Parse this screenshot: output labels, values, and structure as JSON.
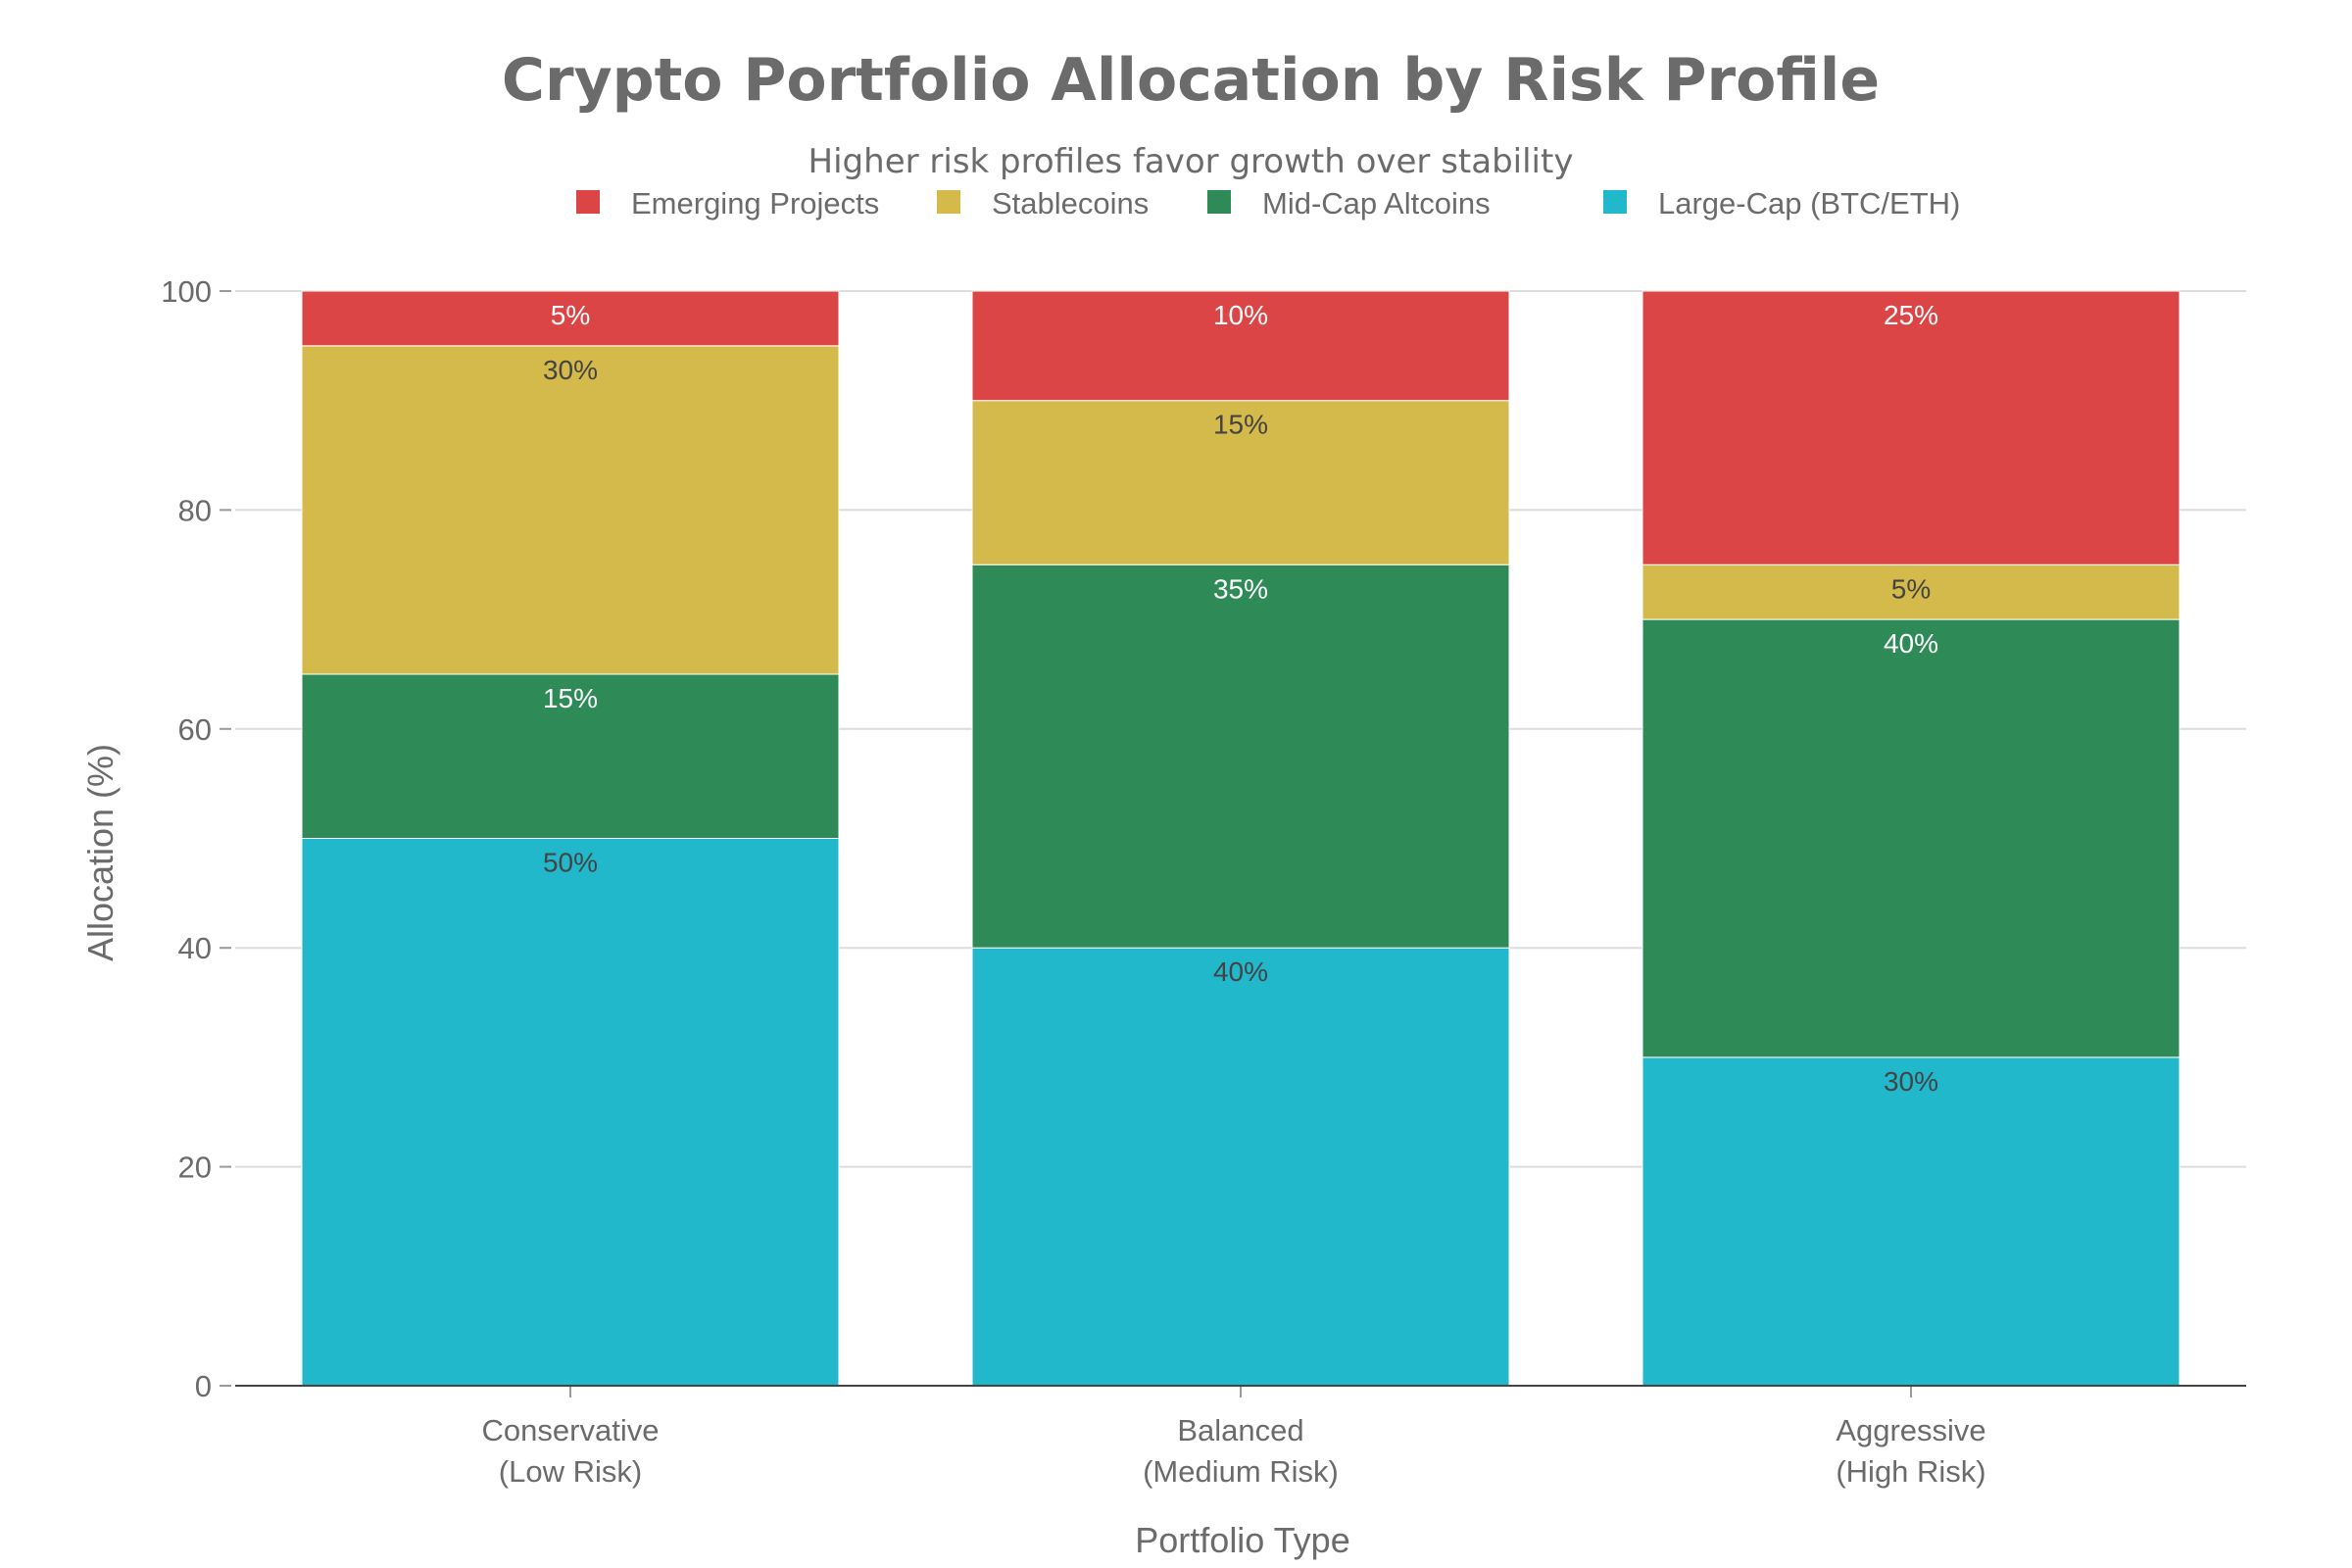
{
  "chart_data": {
    "type": "bar",
    "stacked": true,
    "title": "Crypto Portfolio Allocation by Risk Profile",
    "subtitle": "Higher risk profiles favor growth over stability",
    "xlabel": "Portfolio Type",
    "ylabel": "Allocation (%)",
    "ylim": [
      0,
      100
    ],
    "yticks": [
      0,
      20,
      40,
      60,
      80,
      100
    ],
    "grid": true,
    "legend_position": "top-center",
    "categories": [
      [
        "Conservative",
        "(Low Risk)"
      ],
      [
        "Balanced",
        "(Medium Risk)"
      ],
      [
        "Aggressive",
        "(High Risk)"
      ]
    ],
    "series": [
      {
        "name": "Large-Cap (BTC/ETH)",
        "color": "#21b8cc",
        "label_color": "#444444",
        "values": [
          50,
          40,
          30
        ],
        "labels": [
          "50%",
          "40%",
          "30%"
        ]
      },
      {
        "name": "Mid-Cap Altcoins",
        "color": "#2e8b57",
        "label_color": "#ffffff",
        "values": [
          15,
          35,
          40
        ],
        "labels": [
          "15%",
          "35%",
          "40%"
        ]
      },
      {
        "name": "Stablecoins",
        "color": "#d4b94b",
        "label_color": "#444444",
        "values": [
          30,
          15,
          5
        ],
        "labels": [
          "30%",
          "15%",
          "5%"
        ]
      },
      {
        "name": "Emerging Projects",
        "color": "#db4545",
        "label_color": "#ffffff",
        "values": [
          5,
          10,
          25
        ],
        "labels": [
          "5%",
          "10%",
          "25%"
        ]
      }
    ],
    "legend_order": [
      "Emerging Projects",
      "Stablecoins",
      "Mid-Cap Altcoins",
      "Large-Cap (BTC/ETH)"
    ]
  }
}
